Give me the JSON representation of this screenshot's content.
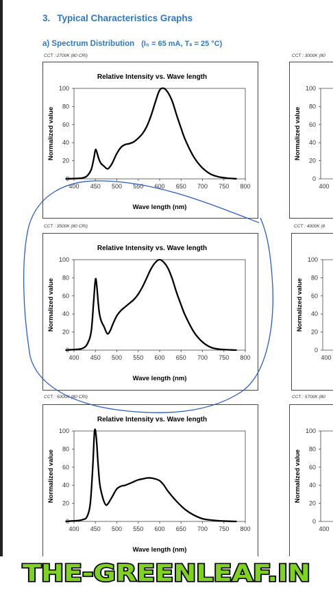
{
  "section": {
    "number": "3.",
    "title": "Typical Characteristics Graphs"
  },
  "subsection": {
    "label": "a)  Spectrum Distribution",
    "conditions": "(I₅ = 65 mA, Tₛ = 25 °C)"
  },
  "watermark": "THE-GREENLEAF.IN",
  "colors": {
    "heading": "#2f78c4",
    "curve": "#000000",
    "annotation": "#2a5cc8",
    "watermark_fill": "#7ed321"
  },
  "chart_data": [
    {
      "type": "line",
      "cct_label": "CCT : 2700K (80 CRI)",
      "title": "Relative Intensity vs. Wave length",
      "xlabel": "Wave length (nm)",
      "ylabel": "Normalized value",
      "xlim": [
        400,
        800
      ],
      "ylim": [
        0,
        100
      ],
      "xticks": [
        "400",
        "450",
        "500",
        "550",
        "600",
        "650",
        "700",
        "750",
        "800"
      ],
      "yticks": [
        "0",
        "20",
        "40",
        "60",
        "80",
        "100"
      ],
      "x": [
        380,
        410,
        420,
        430,
        440,
        446,
        450,
        453,
        458,
        463,
        470,
        478,
        485,
        490,
        500,
        510,
        520,
        530,
        540,
        550,
        560,
        570,
        580,
        590,
        600,
        610,
        620,
        630,
        640,
        650,
        660,
        680,
        700,
        720,
        740,
        760,
        780
      ],
      "y": [
        0,
        0.5,
        1,
        3,
        10,
        22,
        32,
        30,
        22,
        17,
        14,
        11,
        14,
        18,
        28,
        35,
        38,
        39,
        41,
        45,
        50,
        58,
        70,
        85,
        98,
        100,
        95,
        85,
        70,
        56,
        43,
        24,
        12,
        5,
        2,
        0.7,
        0
      ]
    },
    {
      "type": "line",
      "cct_label": "CCT : 3500K (80 CRI)",
      "title": "Relative Intensity vs. Wave length",
      "xlabel": "Wave length (nm)",
      "ylabel": "Normalized value",
      "xlim": [
        400,
        800
      ],
      "ylim": [
        0,
        100
      ],
      "xticks": [
        "400",
        "450",
        "500",
        "550",
        "600",
        "650",
        "700",
        "750",
        "800"
      ],
      "yticks": [
        "0",
        "20",
        "40",
        "60",
        "80",
        "100"
      ],
      "x": [
        380,
        410,
        420,
        430,
        440,
        446,
        450,
        453,
        458,
        463,
        470,
        478,
        485,
        490,
        500,
        510,
        520,
        530,
        540,
        550,
        560,
        570,
        580,
        590,
        600,
        610,
        620,
        630,
        640,
        650,
        660,
        680,
        700,
        720,
        740,
        760,
        780
      ],
      "y": [
        0,
        1,
        2,
        6,
        20,
        55,
        78,
        72,
        45,
        33,
        26,
        18,
        22,
        28,
        38,
        44,
        48,
        52,
        56,
        62,
        70,
        80,
        90,
        97,
        100,
        97,
        90,
        78,
        63,
        50,
        38,
        20,
        9,
        3,
        1,
        0.4,
        0
      ]
    },
    {
      "type": "line",
      "cct_label": "CCT : 5000K (80 CRI)",
      "title": "Relative Intensity vs. Wave length",
      "xlabel": "Wave length (nm)",
      "ylabel": "Normalized value",
      "xlim": [
        400,
        800
      ],
      "ylim": [
        0,
        100
      ],
      "xticks": [
        "400",
        "450",
        "500",
        "550",
        "600",
        "650",
        "700",
        "750",
        "800"
      ],
      "yticks": [
        "0",
        "20",
        "40",
        "60",
        "80",
        "100"
      ],
      "x": [
        380,
        410,
        420,
        430,
        438,
        444,
        448,
        452,
        456,
        460,
        465,
        470,
        475,
        480,
        490,
        500,
        510,
        520,
        530,
        540,
        550,
        560,
        570,
        580,
        590,
        600,
        610,
        620,
        640,
        660,
        680,
        700,
        720,
        740,
        760,
        780
      ],
      "y": [
        0,
        1,
        2,
        5,
        20,
        62,
        100,
        93,
        65,
        42,
        30,
        22,
        18,
        20,
        28,
        36,
        39,
        40,
        42,
        44,
        46,
        47,
        48,
        48,
        47,
        45,
        40,
        33,
        22,
        13,
        7,
        3,
        1.5,
        0.6,
        0.2,
        0
      ]
    }
  ],
  "right_column": [
    {
      "cct_label": "CCT : 3000K (80",
      "yticks": [
        "0",
        "20",
        "40",
        "60",
        "80",
        "100"
      ],
      "xtick": "400",
      "ylabel": "Normalized value"
    },
    {
      "cct_label": "CCT : 4000K (8",
      "yticks": [
        "0",
        "20",
        "40",
        "60",
        "80",
        "100"
      ],
      "xtick": "400",
      "ylabel": "Normalized value"
    },
    {
      "cct_label": "CCT : 5700K (80",
      "yticks": [
        "0",
        "20",
        "40",
        "60",
        "80",
        "100"
      ],
      "xtick": "400",
      "ylabel": "Normalized value"
    }
  ]
}
